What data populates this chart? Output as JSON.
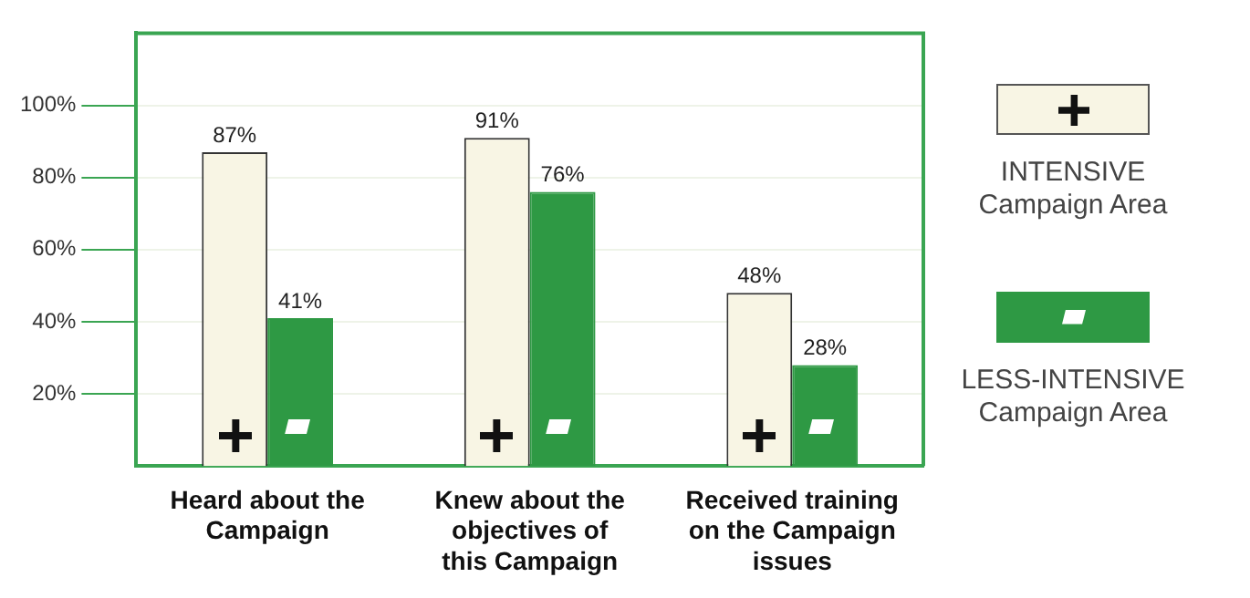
{
  "chart_data": {
    "type": "bar",
    "categories": [
      "Heard about the Campaign",
      "Knew about the objectives of this Campaign",
      "Received training on the Campaign issues"
    ],
    "series": [
      {
        "name": "INTENSIVE Campaign Area",
        "color": "#f8f5e4",
        "values": [
          87,
          91,
          48
        ],
        "value_labels": [
          "87%",
          "91%",
          "48%"
        ]
      },
      {
        "name": "LESS-INTENSIVE Campaign Area",
        "color": "#2e9944",
        "values": [
          41,
          76,
          28
        ],
        "value_labels": [
          "41%",
          "76%",
          "28%"
        ]
      }
    ],
    "ylim": [
      0,
      120
    ],
    "yticks": [
      {
        "value": 20,
        "label": "20%"
      },
      {
        "value": 40,
        "label": "40%"
      },
      {
        "value": 60,
        "label": "60%"
      },
      {
        "value": 80,
        "label": "80%"
      },
      {
        "value": 100,
        "label": "100%"
      }
    ],
    "grid": "y",
    "legend": "right"
  }
}
